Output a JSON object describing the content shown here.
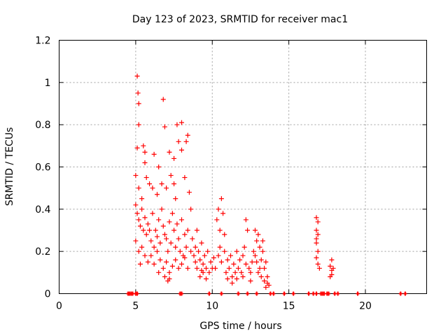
{
  "chart_data": {
    "type": "scatter",
    "title": "Day 123 of 2023, SRMTID for receiver mac1",
    "xlabel": "GPS time / hours",
    "ylabel": "SRMTID / TECUs",
    "xlim": [
      0,
      24
    ],
    "ylim": [
      0,
      1.2
    ],
    "xticks": [
      0,
      5,
      10,
      15,
      20
    ],
    "yticks": [
      0,
      0.2,
      0.4,
      0.6,
      0.8,
      1,
      1.2
    ],
    "xtick_labels": [
      "0",
      "5",
      "10",
      "15",
      "20"
    ],
    "ytick_labels": [
      "0",
      "0.2",
      "0.4",
      "0.6",
      "0.8",
      "1",
      "1.2"
    ],
    "grid": true,
    "marker": "+",
    "color": "#ff0000",
    "series": [
      {
        "values": [
          [
            5.1,
            1.03
          ],
          [
            5.15,
            0.95
          ],
          [
            5.2,
            0.9
          ],
          [
            5.2,
            0.8
          ],
          [
            6.8,
            0.92
          ],
          [
            6.9,
            0.79
          ],
          [
            7.7,
            0.8
          ],
          [
            8.0,
            0.81
          ],
          [
            5.1,
            0.69
          ],
          [
            5.5,
            0.7
          ],
          [
            5.6,
            0.67
          ],
          [
            5.6,
            0.62
          ],
          [
            6.2,
            0.66
          ],
          [
            6.5,
            0.6
          ],
          [
            7.2,
            0.67
          ],
          [
            7.5,
            0.64
          ],
          [
            7.8,
            0.72
          ],
          [
            8.0,
            0.68
          ],
          [
            8.3,
            0.72
          ],
          [
            8.4,
            0.75
          ],
          [
            5.0,
            0.56
          ],
          [
            5.2,
            0.5
          ],
          [
            5.4,
            0.45
          ],
          [
            5.7,
            0.55
          ],
          [
            5.9,
            0.52
          ],
          [
            6.1,
            0.5
          ],
          [
            6.4,
            0.47
          ],
          [
            6.7,
            0.52
          ],
          [
            7.0,
            0.5
          ],
          [
            7.3,
            0.56
          ],
          [
            7.5,
            0.52
          ],
          [
            7.6,
            0.45
          ],
          [
            8.2,
            0.55
          ],
          [
            8.5,
            0.48
          ],
          [
            8.6,
            0.4
          ],
          [
            5.0,
            0.42
          ],
          [
            5.1,
            0.38
          ],
          [
            5.2,
            0.35
          ],
          [
            5.3,
            0.32
          ],
          [
            5.4,
            0.4
          ],
          [
            5.5,
            0.3
          ],
          [
            5.6,
            0.36
          ],
          [
            5.7,
            0.28
          ],
          [
            5.8,
            0.33
          ],
          [
            5.9,
            0.3
          ],
          [
            6.0,
            0.25
          ],
          [
            6.1,
            0.38
          ],
          [
            6.2,
            0.22
          ],
          [
            6.3,
            0.3
          ],
          [
            6.4,
            0.27
          ],
          [
            6.5,
            0.35
          ],
          [
            6.6,
            0.24
          ],
          [
            6.7,
            0.4
          ],
          [
            6.8,
            0.32
          ],
          [
            6.9,
            0.28
          ],
          [
            7.0,
            0.26
          ],
          [
            7.1,
            0.2
          ],
          [
            7.2,
            0.34
          ],
          [
            7.3,
            0.24
          ],
          [
            7.4,
            0.38
          ],
          [
            7.5,
            0.3
          ],
          [
            7.6,
            0.22
          ],
          [
            7.7,
            0.33
          ],
          [
            7.8,
            0.26
          ],
          [
            7.9,
            0.2
          ],
          [
            8.0,
            0.35
          ],
          [
            8.1,
            0.18
          ],
          [
            8.2,
            0.28
          ],
          [
            8.3,
            0.22
          ],
          [
            8.4,
            0.3
          ],
          [
            5.0,
            0.25
          ],
          [
            5.2,
            0.2
          ],
          [
            5.4,
            0.22
          ],
          [
            5.6,
            0.18
          ],
          [
            5.8,
            0.15
          ],
          [
            6.0,
            0.18
          ],
          [
            6.2,
            0.14
          ],
          [
            6.4,
            0.2
          ],
          [
            6.6,
            0.16
          ],
          [
            6.8,
            0.12
          ],
          [
            7.0,
            0.15
          ],
          [
            7.2,
            0.1
          ],
          [
            7.4,
            0.13
          ],
          [
            7.6,
            0.16
          ],
          [
            7.8,
            0.12
          ],
          [
            8.0,
            0.14
          ],
          [
            8.2,
            0.17
          ],
          [
            8.4,
            0.12
          ],
          [
            8.6,
            0.2
          ],
          [
            8.8,
            0.18
          ],
          [
            6.9,
            0.08
          ],
          [
            7.2,
            0.07
          ],
          [
            5.3,
            0.14
          ],
          [
            6.5,
            0.1
          ],
          [
            7.1,
            0.06
          ],
          [
            8.7,
            0.26
          ],
          [
            8.9,
            0.22
          ],
          [
            9.0,
            0.3
          ],
          [
            9.1,
            0.2
          ],
          [
            9.2,
            0.16
          ],
          [
            9.3,
            0.24
          ],
          [
            9.4,
            0.14
          ],
          [
            9.5,
            0.18
          ],
          [
            9.6,
            0.12
          ],
          [
            9.7,
            0.2
          ],
          [
            9.8,
            0.1
          ],
          [
            9.9,
            0.15
          ],
          [
            10.0,
            0.12
          ],
          [
            10.1,
            0.17
          ],
          [
            9.0,
            0.12
          ],
          [
            9.2,
            0.08
          ],
          [
            9.4,
            0.1
          ],
          [
            9.6,
            0.07
          ],
          [
            8.9,
            0.15
          ],
          [
            9.3,
            0.11
          ],
          [
            10.3,
            0.35
          ],
          [
            10.4,
            0.4
          ],
          [
            10.5,
            0.3
          ],
          [
            10.6,
            0.45
          ],
          [
            10.7,
            0.38
          ],
          [
            10.8,
            0.28
          ],
          [
            10.5,
            0.22
          ],
          [
            10.4,
            0.18
          ],
          [
            10.6,
            0.15
          ],
          [
            10.8,
            0.2
          ],
          [
            10.2,
            0.12
          ],
          [
            10.9,
            0.1
          ],
          [
            11.0,
            0.16
          ],
          [
            11.1,
            0.12
          ],
          [
            11.2,
            0.18
          ],
          [
            11.3,
            0.08
          ],
          [
            11.4,
            0.14
          ],
          [
            11.5,
            0.1
          ],
          [
            11.6,
            0.2
          ],
          [
            11.7,
            0.12
          ],
          [
            11.8,
            0.16
          ],
          [
            11.9,
            0.1
          ],
          [
            12.0,
            0.18
          ],
          [
            12.1,
            0.22
          ],
          [
            12.2,
            0.14
          ],
          [
            12.3,
            0.3
          ],
          [
            12.2,
            0.35
          ],
          [
            12.4,
            0.12
          ],
          [
            12.5,
            0.1
          ],
          [
            12.6,
            0.15
          ],
          [
            11.0,
            0.07
          ],
          [
            11.3,
            0.05
          ],
          [
            11.6,
            0.07
          ],
          [
            12.0,
            0.08
          ],
          [
            12.5,
            0.06
          ],
          [
            12.7,
            0.2
          ],
          [
            12.8,
            0.18
          ],
          [
            12.9,
            0.25
          ],
          [
            13.0,
            0.28
          ],
          [
            13.1,
            0.22
          ],
          [
            13.2,
            0.16
          ],
          [
            13.3,
            0.2
          ],
          [
            13.4,
            0.12
          ],
          [
            13.5,
            0.15
          ],
          [
            13.0,
            0.1
          ],
          [
            13.2,
            0.08
          ],
          [
            13.4,
            0.06
          ],
          [
            13.6,
            0.05
          ],
          [
            13.7,
            0.04
          ],
          [
            13.5,
            0.03
          ],
          [
            13.6,
            0.08
          ],
          [
            13.1,
            0.12
          ],
          [
            12.9,
            0.15
          ],
          [
            13.3,
            0.25
          ],
          [
            12.8,
            0.3
          ],
          [
            16.8,
            0.36
          ],
          [
            16.8,
            0.3
          ],
          [
            16.9,
            0.28
          ],
          [
            16.8,
            0.24
          ],
          [
            16.9,
            0.2
          ],
          [
            16.8,
            0.17
          ],
          [
            16.9,
            0.14
          ],
          [
            17.0,
            0.12
          ],
          [
            16.9,
            0.34
          ],
          [
            16.8,
            0.26
          ],
          [
            17.8,
            0.16
          ],
          [
            17.7,
            0.13
          ],
          [
            17.8,
            0.11
          ],
          [
            17.9,
            0.12
          ],
          [
            17.7,
            0.08
          ],
          [
            17.8,
            0.09
          ]
        ]
      }
    ],
    "zero_markers_x": [
      4.5,
      4.6,
      4.7,
      4.8,
      5.0,
      5.1,
      7.9,
      8.0,
      9.8,
      10.6,
      11.7,
      12.3,
      12.9,
      13.8,
      14.0,
      14.7,
      15.3,
      16.3,
      16.6,
      16.8,
      17.1,
      17.2,
      17.3,
      17.5,
      17.6,
      18.0,
      18.2,
      19.5,
      22.3,
      22.6
    ]
  }
}
